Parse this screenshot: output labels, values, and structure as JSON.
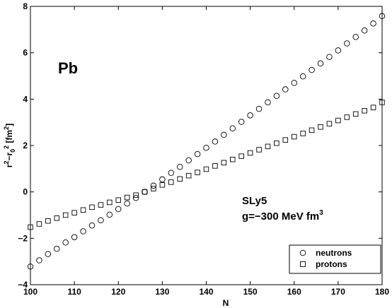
{
  "chart_data": {
    "type": "scatter",
    "title": "",
    "xlabel": "N",
    "ylabel": {
      "base": "r",
      "sup1": "2",
      "dash": "−r",
      "sub": "0",
      "sup2": "2",
      "unit_open": " [fm",
      "unit_sup": "2",
      "unit_close": "]"
    },
    "xlim": [
      100,
      180
    ],
    "ylim": [
      -4,
      8
    ],
    "xticks": [
      100,
      110,
      120,
      130,
      140,
      150,
      160,
      170,
      180
    ],
    "yticks": [
      -4,
      -2,
      0,
      2,
      4,
      6,
      8
    ],
    "grid": false,
    "legend_position": "bottom-right",
    "annotations": {
      "element": "Pb",
      "force": "SLy5",
      "coupling": "g=−300 MeV fm",
      "coupling_sup": "3"
    },
    "series": [
      {
        "name": "neutrons",
        "marker": "circle",
        "x": [
          100,
          102,
          104,
          106,
          108,
          110,
          112,
          114,
          116,
          118,
          120,
          122,
          124,
          126,
          128,
          130,
          132,
          134,
          136,
          138,
          140,
          142,
          144,
          146,
          148,
          150,
          152,
          154,
          156,
          158,
          160,
          162,
          164,
          166,
          168,
          170,
          172,
          174,
          176,
          178,
          180
        ],
        "y": [
          -3.22,
          -2.95,
          -2.68,
          -2.45,
          -2.18,
          -1.95,
          -1.7,
          -1.45,
          -1.22,
          -0.98,
          -0.74,
          -0.5,
          -0.26,
          0.0,
          0.27,
          0.54,
          0.82,
          1.08,
          1.36,
          1.63,
          1.9,
          2.17,
          2.46,
          2.74,
          3.02,
          3.3,
          3.58,
          3.86,
          4.14,
          4.42,
          4.7,
          4.98,
          5.26,
          5.54,
          5.82,
          6.1,
          6.4,
          6.68,
          6.96,
          7.26,
          7.58
        ]
      },
      {
        "name": "protons",
        "marker": "square",
        "x": [
          100,
          102,
          104,
          106,
          108,
          110,
          112,
          114,
          116,
          118,
          120,
          122,
          124,
          126,
          128,
          130,
          132,
          134,
          136,
          138,
          140,
          142,
          144,
          146,
          148,
          150,
          152,
          154,
          156,
          158,
          160,
          162,
          164,
          166,
          168,
          170,
          172,
          174,
          176,
          178,
          180
        ],
        "y": [
          -1.52,
          -1.38,
          -1.25,
          -1.13,
          -1.0,
          -0.9,
          -0.78,
          -0.66,
          -0.56,
          -0.45,
          -0.35,
          -0.24,
          -0.14,
          0.0,
          0.14,
          0.3,
          0.42,
          0.56,
          0.7,
          0.84,
          0.98,
          1.12,
          1.26,
          1.4,
          1.54,
          1.68,
          1.82,
          1.96,
          2.1,
          2.24,
          2.38,
          2.52,
          2.66,
          2.8,
          2.94,
          3.08,
          3.22,
          3.36,
          3.5,
          3.64,
          3.86
        ]
      }
    ]
  }
}
